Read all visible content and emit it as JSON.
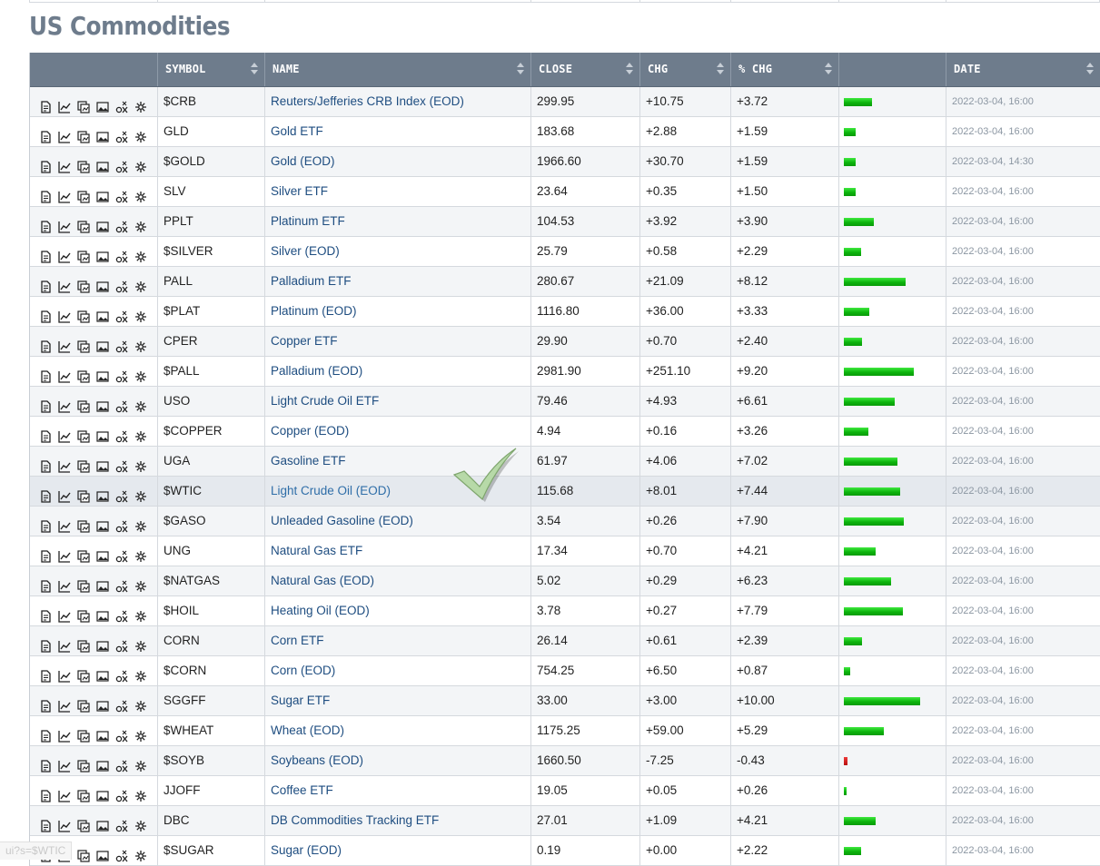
{
  "page": {
    "title": "US Commodities"
  },
  "status_bar": {
    "text": "ui?s=$WTIC"
  },
  "table": {
    "headers": {
      "symbol": "SYMBOL",
      "name": "NAME",
      "close": "CLOSE",
      "chg": "CHG",
      "pct_chg": "% CHG",
      "date": "DATE"
    },
    "row_icons": [
      "summary-icon",
      "chart-icon",
      "gallery-icon",
      "image-icon",
      "options-icon",
      "settings-icon"
    ],
    "colors": {
      "positive_bar": "#1bd01b",
      "negative_bar": "#c81414",
      "header_bg": "#6e7c8c",
      "link": "#1e4d80"
    },
    "rows": [
      {
        "symbol": "$CRB",
        "name": "Reuters/Jefferies CRB Index (EOD)",
        "close": "299.95",
        "chg": "+10.75",
        "pct_chg": "+3.72",
        "pct_value": 3.72,
        "date": "2022-03-04, 16:00"
      },
      {
        "symbol": "GLD",
        "name": "Gold ETF",
        "close": "183.68",
        "chg": "+2.88",
        "pct_chg": "+1.59",
        "pct_value": 1.59,
        "date": "2022-03-04, 16:00"
      },
      {
        "symbol": "$GOLD",
        "name": "Gold (EOD)",
        "close": "1966.60",
        "chg": "+30.70",
        "pct_chg": "+1.59",
        "pct_value": 1.59,
        "date": "2022-03-04, 14:30"
      },
      {
        "symbol": "SLV",
        "name": "Silver ETF",
        "close": "23.64",
        "chg": "+0.35",
        "pct_chg": "+1.50",
        "pct_value": 1.5,
        "date": "2022-03-04, 16:00"
      },
      {
        "symbol": "PPLT",
        "name": "Platinum ETF",
        "close": "104.53",
        "chg": "+3.92",
        "pct_chg": "+3.90",
        "pct_value": 3.9,
        "date": "2022-03-04, 16:00"
      },
      {
        "symbol": "$SILVER",
        "name": "Silver (EOD)",
        "close": "25.79",
        "chg": "+0.58",
        "pct_chg": "+2.29",
        "pct_value": 2.29,
        "date": "2022-03-04, 16:00"
      },
      {
        "symbol": "PALL",
        "name": "Palladium ETF",
        "close": "280.67",
        "chg": "+21.09",
        "pct_chg": "+8.12",
        "pct_value": 8.12,
        "date": "2022-03-04, 16:00"
      },
      {
        "symbol": "$PLAT",
        "name": "Platinum (EOD)",
        "close": "1116.80",
        "chg": "+36.00",
        "pct_chg": "+3.33",
        "pct_value": 3.33,
        "date": "2022-03-04, 16:00"
      },
      {
        "symbol": "CPER",
        "name": "Copper ETF",
        "close": "29.90",
        "chg": "+0.70",
        "pct_chg": "+2.40",
        "pct_value": 2.4,
        "date": "2022-03-04, 16:00"
      },
      {
        "symbol": "$PALL",
        "name": "Palladium (EOD)",
        "close": "2981.90",
        "chg": "+251.10",
        "pct_chg": "+9.20",
        "pct_value": 9.2,
        "date": "2022-03-04, 16:00"
      },
      {
        "symbol": "USO",
        "name": "Light Crude Oil ETF",
        "close": "79.46",
        "chg": "+4.93",
        "pct_chg": "+6.61",
        "pct_value": 6.61,
        "date": "2022-03-04, 16:00"
      },
      {
        "symbol": "$COPPER",
        "name": "Copper (EOD)",
        "close": "4.94",
        "chg": "+0.16",
        "pct_chg": "+3.26",
        "pct_value": 3.26,
        "date": "2022-03-04, 16:00"
      },
      {
        "symbol": "UGA",
        "name": "Gasoline ETF",
        "close": "61.97",
        "chg": "+4.06",
        "pct_chg": "+7.02",
        "pct_value": 7.02,
        "date": "2022-03-04, 16:00"
      },
      {
        "symbol": "$WTIC",
        "name": "Light Crude Oil (EOD)",
        "close": "115.68",
        "chg": "+8.01",
        "pct_chg": "+7.44",
        "pct_value": 7.44,
        "date": "2022-03-04, 16:00",
        "highlighted": true
      },
      {
        "symbol": "$GASO",
        "name": "Unleaded Gasoline (EOD)",
        "close": "3.54",
        "chg": "+0.26",
        "pct_chg": "+7.90",
        "pct_value": 7.9,
        "date": "2022-03-04, 16:00"
      },
      {
        "symbol": "UNG",
        "name": "Natural Gas ETF",
        "close": "17.34",
        "chg": "+0.70",
        "pct_chg": "+4.21",
        "pct_value": 4.21,
        "date": "2022-03-04, 16:00"
      },
      {
        "symbol": "$NATGAS",
        "name": "Natural Gas (EOD)",
        "close": "5.02",
        "chg": "+0.29",
        "pct_chg": "+6.23",
        "pct_value": 6.23,
        "date": "2022-03-04, 16:00"
      },
      {
        "symbol": "$HOIL",
        "name": "Heating Oil (EOD)",
        "close": "3.78",
        "chg": "+0.27",
        "pct_chg": "+7.79",
        "pct_value": 7.79,
        "date": "2022-03-04, 16:00"
      },
      {
        "symbol": "CORN",
        "name": "Corn ETF",
        "close": "26.14",
        "chg": "+0.61",
        "pct_chg": "+2.39",
        "pct_value": 2.39,
        "date": "2022-03-04, 16:00"
      },
      {
        "symbol": "$CORN",
        "name": "Corn (EOD)",
        "close": "754.25",
        "chg": "+6.50",
        "pct_chg": "+0.87",
        "pct_value": 0.87,
        "date": "2022-03-04, 16:00"
      },
      {
        "symbol": "SGGFF",
        "name": "Sugar ETF",
        "close": "33.00",
        "chg": "+3.00",
        "pct_chg": "+10.00",
        "pct_value": 10.0,
        "date": "2022-03-04, 16:00"
      },
      {
        "symbol": "$WHEAT",
        "name": "Wheat (EOD)",
        "close": "1175.25",
        "chg": "+59.00",
        "pct_chg": "+5.29",
        "pct_value": 5.29,
        "date": "2022-03-04, 16:00"
      },
      {
        "symbol": "$SOYB",
        "name": "Soybeans (EOD)",
        "close": "1660.50",
        "chg": "-7.25",
        "pct_chg": "-0.43",
        "pct_value": -0.43,
        "date": "2022-03-04, 16:00"
      },
      {
        "symbol": "JJOFF",
        "name": "Coffee ETF",
        "close": "19.05",
        "chg": "+0.05",
        "pct_chg": "+0.26",
        "pct_value": 0.26,
        "date": "2022-03-04, 16:00"
      },
      {
        "symbol": "DBC",
        "name": "DB Commodities Tracking ETF",
        "close": "27.01",
        "chg": "+1.09",
        "pct_chg": "+4.21",
        "pct_value": 4.21,
        "date": "2022-03-04, 16:00"
      },
      {
        "symbol": "$SUGAR",
        "name": "Sugar (EOD)",
        "close": "0.19",
        "chg": "+0.00",
        "pct_chg": "+2.22",
        "pct_value": 2.22,
        "date": "2022-03-04, 16:00"
      }
    ]
  }
}
